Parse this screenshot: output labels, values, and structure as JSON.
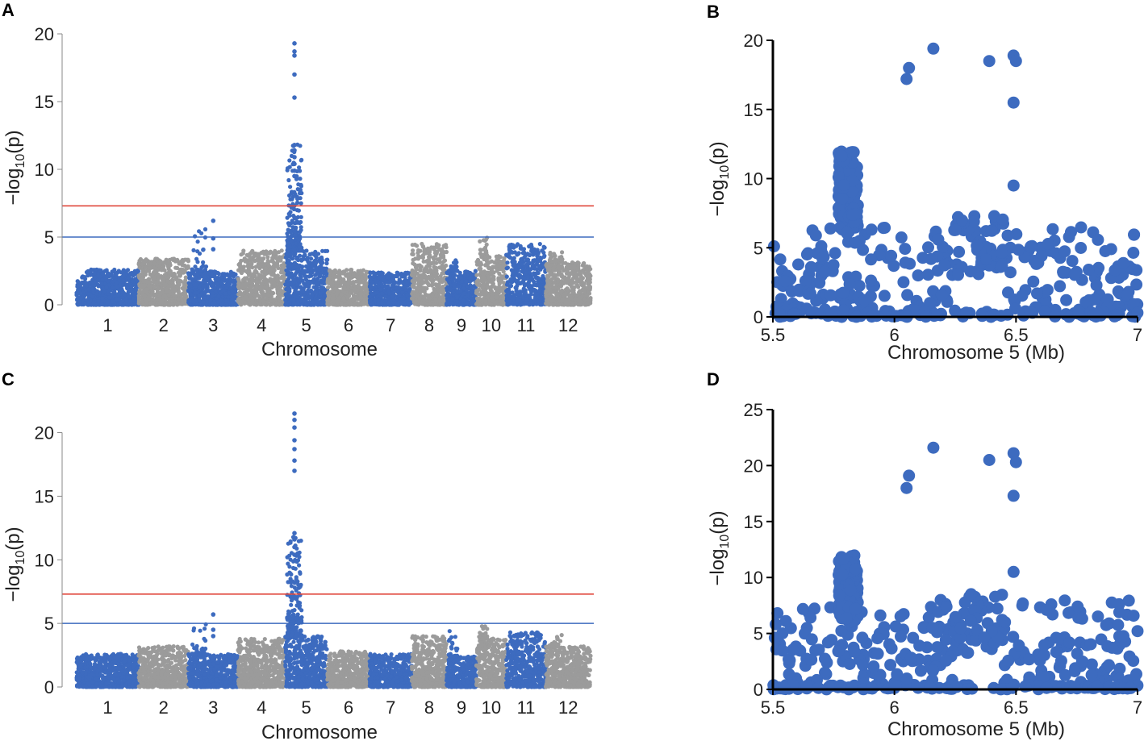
{
  "colors": {
    "blue": "#3d6bbf",
    "gray": "#9b9b9b",
    "red_line": "#e0483c",
    "blue_line": "#3d6bbf",
    "axis": "#000000"
  },
  "chart_data": [
    {
      "panel": "A",
      "type": "scatter",
      "subtype": "manhattan",
      "xlabel": "Chromosome",
      "ylabel": "-log10(p)",
      "ylim": [
        0,
        20
      ],
      "yticks": [
        0,
        5,
        10,
        15,
        20
      ],
      "categories": [
        "1",
        "2",
        "3",
        "4",
        "5",
        "6",
        "7",
        "8",
        "9",
        "10",
        "11",
        "12"
      ],
      "thresholds": [
        {
          "name": "significance",
          "value": 7.3,
          "color": "red"
        },
        {
          "name": "suggestive",
          "value": 5.0,
          "color": "blue"
        }
      ],
      "chromosome_baseline_max": [
        2.6,
        3.4,
        2.5,
        4.0,
        4.0,
        2.6,
        2.4,
        4.5,
        2.5,
        3.6,
        4.5,
        3.2
      ],
      "chromosome_peak_max": [
        3.1,
        3.9,
        6.2,
        4.2,
        19.3,
        2.8,
        2.6,
        4.7,
        3.3,
        5.1,
        4.9,
        3.9
      ],
      "top_hits": [
        {
          "chromosome": "5",
          "values": [
            19.3,
            18.7,
            18.4,
            17.0,
            15.3,
            11.8,
            11.4,
            10.9,
            10.4,
            9.9,
            9.5
          ]
        },
        {
          "chromosome": "3",
          "values": [
            6.2,
            4.9,
            4.1
          ]
        }
      ]
    },
    {
      "panel": "B",
      "type": "scatter",
      "xlabel": "Chromosome 5 (Mb)",
      "ylabel": "-log10(p)",
      "xlim": [
        5.5,
        7
      ],
      "ylim": [
        0,
        20
      ],
      "xticks": [
        "5.5",
        "6",
        "6.5",
        "7"
      ],
      "yticks": [
        0,
        5,
        10,
        15,
        20
      ],
      "top_points": [
        {
          "x": 6.05,
          "y": 17.2
        },
        {
          "x": 6.06,
          "y": 18.0
        },
        {
          "x": 6.16,
          "y": 19.4
        },
        {
          "x": 6.39,
          "y": 18.5
        },
        {
          "x": 6.49,
          "y": 18.9
        },
        {
          "x": 6.5,
          "y": 18.5
        },
        {
          "x": 6.49,
          "y": 15.5
        },
        {
          "x": 6.49,
          "y": 9.5
        }
      ]
    },
    {
      "panel": "C",
      "type": "scatter",
      "subtype": "manhattan",
      "xlabel": "Chromosome",
      "ylabel": "-log10(p)",
      "ylim": [
        0,
        22
      ],
      "yticks": [
        0,
        5,
        10,
        15,
        20
      ],
      "categories": [
        "1",
        "2",
        "3",
        "4",
        "5",
        "6",
        "7",
        "8",
        "9",
        "10",
        "11",
        "12"
      ],
      "thresholds": [
        {
          "name": "significance",
          "value": 7.3,
          "color": "red"
        },
        {
          "name": "suggestive",
          "value": 5.0,
          "color": "blue"
        }
      ],
      "chromosome_baseline_max": [
        2.6,
        3.2,
        2.6,
        3.8,
        4.0,
        2.8,
        2.6,
        4.0,
        2.4,
        3.8,
        4.3,
        3.2
      ],
      "chromosome_peak_max": [
        3.1,
        3.6,
        5.7,
        4.0,
        21.5,
        3.0,
        2.9,
        4.4,
        4.7,
        4.8,
        4.7,
        4.1
      ],
      "top_hits": [
        {
          "chromosome": "5",
          "values": [
            21.5,
            21.0,
            20.4,
            19.4,
            18.7,
            17.8,
            17.0,
            12.1,
            11.6,
            11.0,
            10.4
          ]
        },
        {
          "chromosome": "3",
          "values": [
            5.7,
            4.5,
            4.0
          ]
        }
      ]
    },
    {
      "panel": "D",
      "type": "scatter",
      "xlabel": "Chromosome 5 (Mb)",
      "ylabel": "-log10(p)",
      "xlim": [
        5.5,
        7
      ],
      "ylim": [
        0,
        25
      ],
      "xticks": [
        "5.5",
        "6",
        "6.5",
        "7"
      ],
      "yticks": [
        0,
        5,
        10,
        15,
        20,
        25
      ],
      "top_points": [
        {
          "x": 6.05,
          "y": 18.0
        },
        {
          "x": 6.06,
          "y": 19.1
        },
        {
          "x": 6.16,
          "y": 21.6
        },
        {
          "x": 6.39,
          "y": 20.5
        },
        {
          "x": 6.49,
          "y": 21.1
        },
        {
          "x": 6.5,
          "y": 20.3
        },
        {
          "x": 6.49,
          "y": 17.3
        },
        {
          "x": 6.49,
          "y": 10.5
        }
      ]
    }
  ]
}
